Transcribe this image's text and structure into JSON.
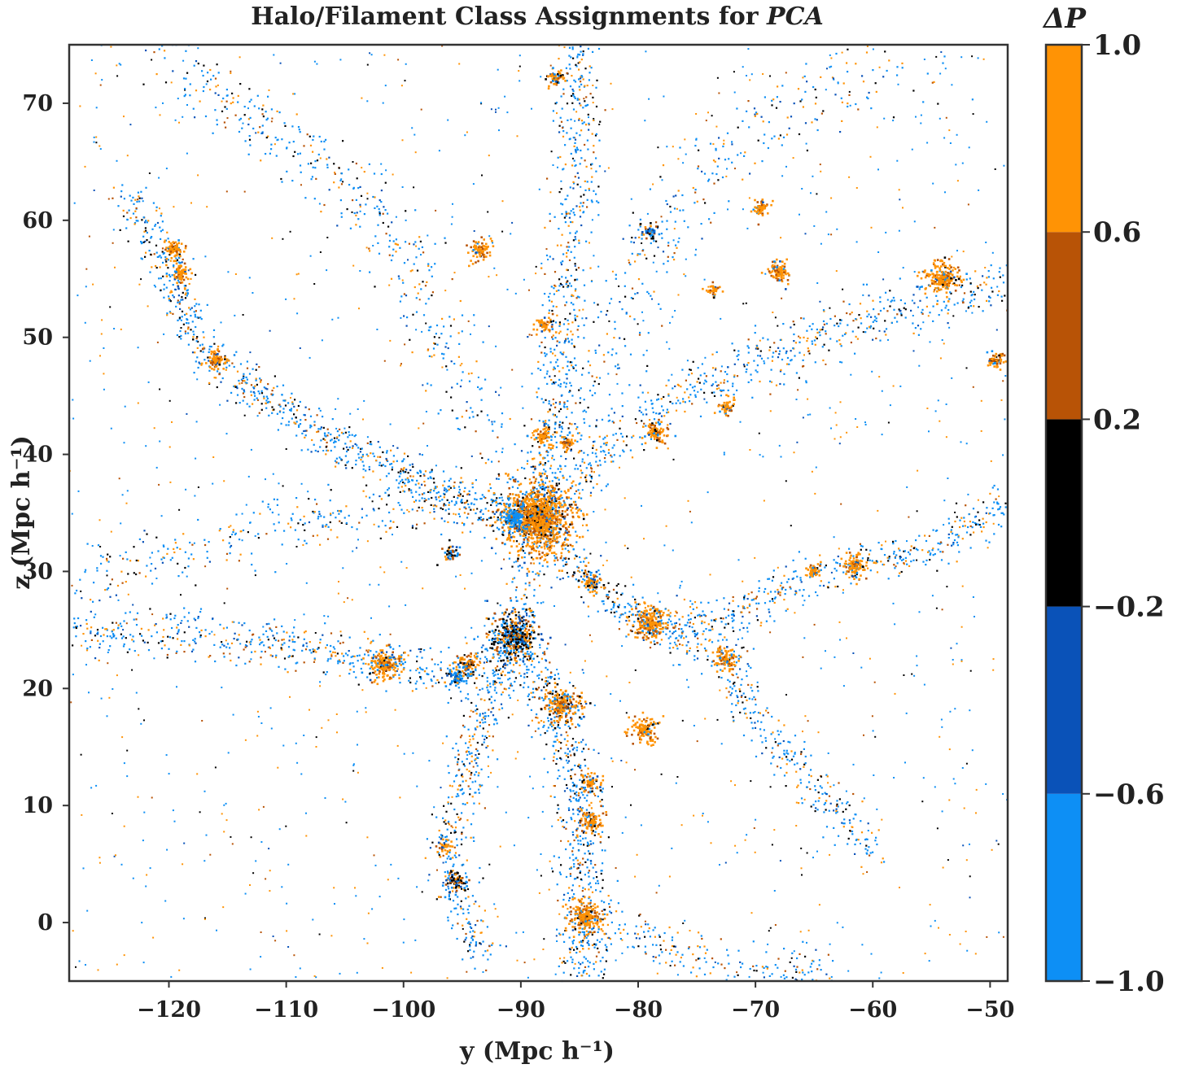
{
  "chart_data": {
    "type": "scatter",
    "title": "Halo/Filament Class Assignments for PCA",
    "title_prefix": "Halo/Filament Class Assignments for ",
    "title_emph": "PCA",
    "xlabel": "y (Mpc h⁻¹)",
    "ylabel": "z (Mpc h⁻¹)",
    "xlim": [
      -128.5,
      -48.5
    ],
    "ylim": [
      -5,
      75
    ],
    "xticks": [
      -120,
      -110,
      -100,
      -90,
      -80,
      -70,
      -60,
      -50
    ],
    "xtick_labels": [
      "−120",
      "−110",
      "−100",
      "−90",
      "−80",
      "−70",
      "−60",
      "−50"
    ],
    "yticks": [
      0,
      10,
      20,
      30,
      40,
      50,
      60,
      70
    ],
    "ytick_labels": [
      "0",
      "10",
      "20",
      "30",
      "40",
      "50",
      "60",
      "70"
    ],
    "grid": false,
    "colorbar": {
      "title": "ΔP",
      "range": [
        -1.0,
        1.0
      ],
      "ticks": [
        -1.0,
        -0.6,
        -0.2,
        0.2,
        0.6,
        1.0
      ],
      "tick_labels": [
        "−1.0",
        "−0.6",
        "−0.2",
        "0.2",
        "0.6",
        "1.0"
      ],
      "bins": [
        {
          "from": -1.0,
          "to": -0.6,
          "color": "#0d8ff5"
        },
        {
          "from": -0.6,
          "to": -0.2,
          "color": "#0a52b8"
        },
        {
          "from": -0.2,
          "to": 0.2,
          "color": "#000000"
        },
        {
          "from": 0.2,
          "to": 0.6,
          "color": "#b85306"
        },
        {
          "from": 0.6,
          "to": 1.0,
          "color": "#ff9305"
        }
      ]
    },
    "halos": [
      {
        "y": -88.5,
        "z": 34.5,
        "r": 3.0,
        "n": 1300,
        "dp": "orange"
      },
      {
        "y": -90.5,
        "z": 34.5,
        "r": 1.2,
        "n": 160,
        "dp": "blue"
      },
      {
        "y": -90.5,
        "z": 24.5,
        "r": 2.2,
        "n": 420,
        "dp": "mixed-dark"
      },
      {
        "y": -79.0,
        "z": 25.5,
        "r": 1.5,
        "n": 240,
        "dp": "orange"
      },
      {
        "y": -101.5,
        "z": 22.0,
        "r": 1.4,
        "n": 200,
        "dp": "orange"
      },
      {
        "y": -86.5,
        "z": 18.5,
        "r": 1.6,
        "n": 240,
        "dp": "mixed-orange"
      },
      {
        "y": -79.5,
        "z": 16.5,
        "r": 1.2,
        "n": 150,
        "dp": "orange"
      },
      {
        "y": -84.5,
        "z": 0.5,
        "r": 1.5,
        "n": 220,
        "dp": "orange"
      },
      {
        "y": -84.0,
        "z": 8.5,
        "r": 1.1,
        "n": 130,
        "dp": "orange"
      },
      {
        "y": -84.0,
        "z": 12.0,
        "r": 0.8,
        "n": 70,
        "dp": "orange"
      },
      {
        "y": -72.5,
        "z": 22.5,
        "r": 1.0,
        "n": 110,
        "dp": "orange"
      },
      {
        "y": -61.5,
        "z": 30.5,
        "r": 1.1,
        "n": 130,
        "dp": "orange"
      },
      {
        "y": -65.0,
        "z": 30.0,
        "r": 0.7,
        "n": 60,
        "dp": "orange"
      },
      {
        "y": -54.0,
        "z": 55.0,
        "r": 1.6,
        "n": 240,
        "dp": "orange"
      },
      {
        "y": -68.0,
        "z": 55.5,
        "r": 1.0,
        "n": 100,
        "dp": "orange"
      },
      {
        "y": -69.5,
        "z": 61.0,
        "r": 0.8,
        "n": 60,
        "dp": "orange"
      },
      {
        "y": -119.5,
        "z": 57.5,
        "r": 0.9,
        "n": 90,
        "dp": "orange"
      },
      {
        "y": -119.0,
        "z": 55.5,
        "r": 1.0,
        "n": 100,
        "dp": "orange"
      },
      {
        "y": -116.0,
        "z": 48.0,
        "r": 0.9,
        "n": 90,
        "dp": "orange"
      },
      {
        "y": -93.5,
        "z": 57.5,
        "r": 1.0,
        "n": 90,
        "dp": "orange"
      },
      {
        "y": -78.5,
        "z": 42.0,
        "r": 1.0,
        "n": 100,
        "dp": "orange"
      },
      {
        "y": -72.5,
        "z": 44.0,
        "r": 0.8,
        "n": 60,
        "dp": "orange"
      },
      {
        "y": -87.0,
        "z": 72.0,
        "r": 0.8,
        "n": 70,
        "dp": "mixed-orange"
      },
      {
        "y": -95.5,
        "z": 3.5,
        "r": 1.2,
        "n": 90,
        "dp": "mixed-dark"
      },
      {
        "y": -96.5,
        "z": 6.5,
        "r": 0.7,
        "n": 40,
        "dp": "orange"
      },
      {
        "y": -88.0,
        "z": 51.0,
        "r": 0.8,
        "n": 60,
        "dp": "orange"
      },
      {
        "y": -79.0,
        "z": 59.0,
        "r": 0.7,
        "n": 50,
        "dp": "mixed-dark"
      },
      {
        "y": -49.5,
        "z": 48.0,
        "r": 0.8,
        "n": 60,
        "dp": "orange"
      },
      {
        "y": -73.5,
        "z": 54.0,
        "r": 0.6,
        "n": 40,
        "dp": "orange"
      },
      {
        "y": -95.5,
        "z": 21.0,
        "r": 0.9,
        "n": 80,
        "dp": "blue"
      },
      {
        "y": -96.0,
        "z": 31.5,
        "r": 0.8,
        "n": 50,
        "dp": "mixed-dark"
      },
      {
        "y": -94.5,
        "z": 22.0,
        "r": 1.0,
        "n": 90,
        "dp": "mixed-orange"
      },
      {
        "y": -88.0,
        "z": 41.5,
        "r": 1.0,
        "n": 90,
        "dp": "orange"
      },
      {
        "y": -86.0,
        "z": 41.0,
        "r": 0.7,
        "n": 50,
        "dp": "orange"
      },
      {
        "y": -84.0,
        "z": 29.0,
        "r": 0.9,
        "n": 70,
        "dp": "mixed-orange"
      }
    ],
    "filaments": [
      {
        "path": [
          [
            -123.5,
            62
          ],
          [
            -120,
            56
          ],
          [
            -117,
            49
          ],
          [
            -112,
            45
          ],
          [
            -106,
            41
          ],
          [
            -101,
            39
          ],
          [
            -95,
            36
          ],
          [
            -89,
            34.5
          ]
        ],
        "n": 800,
        "width": 1.6
      },
      {
        "path": [
          [
            -89,
            34.5
          ],
          [
            -87,
            44
          ],
          [
            -86,
            55
          ],
          [
            -85,
            65
          ],
          [
            -85,
            75
          ]
        ],
        "n": 600,
        "width": 1.8
      },
      {
        "path": [
          [
            -89,
            34.5
          ],
          [
            -84,
            29
          ],
          [
            -79,
            25.5
          ],
          [
            -73,
            25.5
          ],
          [
            -66,
            29.5
          ],
          [
            -61,
            30.5
          ],
          [
            -55,
            32
          ],
          [
            -48.5,
            36
          ]
        ],
        "n": 700,
        "width": 1.6
      },
      {
        "path": [
          [
            -89,
            34.5
          ],
          [
            -82,
            41
          ],
          [
            -77,
            45
          ],
          [
            -70,
            47.5
          ],
          [
            -63,
            51
          ],
          [
            -54,
            54
          ],
          [
            -48.5,
            54
          ]
        ],
        "n": 650,
        "width": 2.0
      },
      {
        "path": [
          [
            -89,
            34.5
          ],
          [
            -90.5,
            24.5
          ],
          [
            -95,
            21
          ],
          [
            -101,
            22
          ],
          [
            -106,
            23
          ],
          [
            -112,
            24
          ],
          [
            -120,
            25
          ],
          [
            -128.5,
            25
          ]
        ],
        "n": 700,
        "width": 1.8
      },
      {
        "path": [
          [
            -90.5,
            24.5
          ],
          [
            -87.5,
            19
          ],
          [
            -85,
            12
          ],
          [
            -84.5,
            5
          ],
          [
            -84.5,
            -1
          ],
          [
            -84.5,
            -5
          ]
        ],
        "n": 700,
        "width": 1.8
      },
      {
        "path": [
          [
            -90.5,
            24.5
          ],
          [
            -94,
            15
          ],
          [
            -96,
            7
          ],
          [
            -95.5,
            2
          ],
          [
            -93,
            -3
          ]
        ],
        "n": 450,
        "width": 1.6
      },
      {
        "path": [
          [
            -79,
            25.5
          ],
          [
            -72.5,
            22.5
          ],
          [
            -70,
            17
          ],
          [
            -65,
            12
          ],
          [
            -60,
            6
          ]
        ],
        "n": 350,
        "width": 1.6
      },
      {
        "path": [
          [
            -89,
            34.5
          ],
          [
            -98,
            36
          ],
          [
            -106,
            35
          ],
          [
            -114,
            33
          ],
          [
            -122,
            31
          ],
          [
            -128.5,
            29
          ]
        ],
        "n": 350,
        "width": 2.2
      },
      {
        "path": [
          [
            -89,
            34.5
          ],
          [
            -95,
            46
          ],
          [
            -100,
            58
          ],
          [
            -106,
            64
          ],
          [
            -115,
            70
          ],
          [
            -122,
            75
          ]
        ],
        "n": 450,
        "width": 2.8
      },
      {
        "path": [
          [
            -89,
            34.5
          ],
          [
            -80,
            55
          ],
          [
            -73,
            66
          ],
          [
            -64,
            71
          ],
          [
            -55,
            73
          ]
        ],
        "n": 400,
        "width": 3.0
      },
      {
        "path": [
          [
            -84.5,
            0.5
          ],
          [
            -78,
            -2
          ],
          [
            -70,
            -4
          ],
          [
            -64,
            -4
          ]
        ],
        "n": 200,
        "width": 1.8
      }
    ],
    "background_points": 1500
  }
}
